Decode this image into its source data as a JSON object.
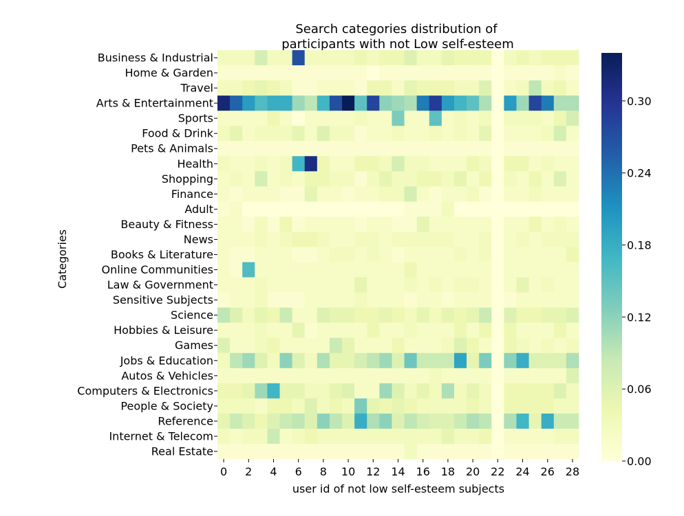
{
  "chart_data": {
    "type": "heatmap",
    "title_lines": [
      "Search categories distribution of",
      "participants with not Low self-esteem"
    ],
    "xlabel": "user id of not low self-esteem subjects",
    "ylabel": "Categories",
    "x": [
      0,
      1,
      2,
      3,
      4,
      5,
      6,
      7,
      8,
      9,
      10,
      11,
      12,
      13,
      14,
      15,
      16,
      17,
      18,
      19,
      20,
      21,
      22,
      23,
      24,
      25,
      26,
      27,
      28
    ],
    "x_tick_labels": [
      "0",
      "2",
      "4",
      "6",
      "8",
      "10",
      "12",
      "14",
      "16",
      "18",
      "20",
      "22",
      "24",
      "26",
      "28"
    ],
    "categories": [
      "Business & Industrial",
      "Home & Garden",
      "Travel",
      "Arts & Entertainment",
      "Sports",
      "Food & Drink",
      "Pets & Animals",
      "Health",
      "Shopping",
      "Finance",
      "Adult",
      "Beauty & Fitness",
      "News",
      "Books & Literature",
      "Online Communities",
      "Law & Government",
      "Sensitive Subjects",
      "Science",
      "Hobbies & Leisure",
      "Games",
      "Jobs & Education",
      "Autos & Vehicles",
      "Computers & Electronics",
      "People & Society",
      "Reference",
      "Internet & Telecom",
      "Real Estate"
    ],
    "colorbar": {
      "min": 0.0,
      "max": 0.34,
      "ticks": [
        0.0,
        0.06,
        0.12,
        0.18,
        0.24,
        0.3
      ],
      "tick_labels": [
        "0.00",
        "0.06",
        "0.12",
        "0.18",
        "0.24",
        "0.30"
      ],
      "colormap": "YlGnBu"
    },
    "values": [
      [
        0.03,
        0.03,
        0.03,
        0.07,
        0.03,
        0.03,
        0.27,
        0.03,
        0.03,
        0.03,
        0.03,
        0.04,
        0.03,
        0.04,
        0.04,
        0.06,
        0.03,
        0.03,
        0.05,
        0.04,
        0.04,
        0.04,
        0.0,
        0.03,
        0.04,
        0.03,
        0.04,
        0.04,
        0.04
      ],
      [
        0.01,
        0.01,
        0.01,
        0.01,
        0.01,
        0.01,
        0.01,
        0.01,
        0.01,
        0.01,
        0.01,
        0.01,
        0.0,
        0.01,
        0.01,
        0.01,
        0.01,
        0.01,
        0.01,
        0.01,
        0.01,
        0.01,
        0.0,
        0.01,
        0.01,
        0.01,
        0.01,
        0.02,
        0.01
      ],
      [
        0.03,
        0.03,
        0.04,
        0.05,
        0.04,
        0.03,
        0.01,
        0.01,
        0.02,
        0.02,
        0.02,
        0.01,
        0.04,
        0.04,
        0.02,
        0.05,
        0.04,
        0.04,
        0.04,
        0.03,
        0.03,
        0.06,
        0.0,
        0.02,
        0.03,
        0.09,
        0.03,
        0.04,
        0.02
      ],
      [
        0.32,
        0.25,
        0.2,
        0.16,
        0.18,
        0.18,
        0.11,
        0.09,
        0.17,
        0.27,
        0.34,
        0.15,
        0.28,
        0.12,
        0.11,
        0.1,
        0.23,
        0.29,
        0.2,
        0.17,
        0.15,
        0.1,
        0.0,
        0.2,
        0.11,
        0.28,
        0.23,
        0.1,
        0.1
      ],
      [
        0.02,
        0.02,
        0.02,
        0.02,
        0.04,
        0.02,
        0.0,
        0.02,
        0.02,
        0.02,
        0.02,
        0.03,
        0.02,
        0.02,
        0.13,
        0.02,
        0.02,
        0.15,
        0.02,
        0.03,
        0.02,
        0.03,
        0.0,
        0.03,
        0.03,
        0.03,
        0.02,
        0.04,
        0.07
      ],
      [
        0.03,
        0.05,
        0.02,
        0.03,
        0.03,
        0.03,
        0.05,
        0.02,
        0.06,
        0.03,
        0.03,
        0.01,
        0.02,
        0.02,
        0.03,
        0.02,
        0.02,
        0.03,
        0.02,
        0.03,
        0.02,
        0.05,
        0.0,
        0.02,
        0.02,
        0.02,
        0.03,
        0.07,
        0.02
      ],
      [
        0.01,
        0.01,
        0.01,
        0.01,
        0.01,
        0.01,
        0.01,
        0.01,
        0.01,
        0.01,
        0.01,
        0.01,
        0.01,
        0.01,
        0.01,
        0.01,
        0.01,
        0.01,
        0.01,
        0.01,
        0.01,
        0.01,
        0.0,
        0.01,
        0.01,
        0.01,
        0.01,
        0.01,
        0.01
      ],
      [
        0.03,
        0.02,
        0.02,
        0.03,
        0.02,
        0.03,
        0.17,
        0.31,
        0.04,
        0.02,
        0.02,
        0.04,
        0.04,
        0.03,
        0.07,
        0.03,
        0.03,
        0.02,
        0.02,
        0.02,
        0.04,
        0.03,
        0.0,
        0.04,
        0.04,
        0.02,
        0.03,
        0.02,
        0.02
      ],
      [
        0.02,
        0.03,
        0.02,
        0.07,
        0.02,
        0.03,
        0.02,
        0.04,
        0.04,
        0.03,
        0.03,
        0.01,
        0.03,
        0.05,
        0.03,
        0.03,
        0.04,
        0.04,
        0.03,
        0.05,
        0.02,
        0.04,
        0.0,
        0.03,
        0.02,
        0.04,
        0.02,
        0.06,
        0.02
      ],
      [
        0.02,
        0.01,
        0.02,
        0.02,
        0.02,
        0.01,
        0.01,
        0.05,
        0.02,
        0.02,
        0.01,
        0.02,
        0.02,
        0.03,
        0.03,
        0.07,
        0.02,
        0.01,
        0.02,
        0.02,
        0.03,
        0.01,
        0.0,
        0.02,
        0.02,
        0.03,
        0.02,
        0.02,
        0.02
      ],
      [
        0.01,
        0.02,
        0.0,
        0.0,
        0.0,
        0.0,
        0.0,
        0.0,
        0.0,
        0.0,
        0.0,
        0.0,
        0.0,
        0.0,
        0.0,
        0.01,
        0.01,
        0.01,
        0.03,
        0.0,
        0.0,
        0.0,
        0.0,
        0.0,
        0.0,
        0.0,
        0.0,
        0.0,
        0.0
      ],
      [
        0.02,
        0.02,
        0.01,
        0.03,
        0.01,
        0.04,
        0.01,
        0.02,
        0.02,
        0.02,
        0.02,
        0.01,
        0.02,
        0.02,
        0.01,
        0.01,
        0.05,
        0.02,
        0.02,
        0.02,
        0.02,
        0.02,
        0.0,
        0.02,
        0.02,
        0.04,
        0.02,
        0.03,
        0.02
      ],
      [
        0.02,
        0.02,
        0.02,
        0.03,
        0.02,
        0.03,
        0.04,
        0.04,
        0.03,
        0.02,
        0.02,
        0.03,
        0.03,
        0.02,
        0.03,
        0.03,
        0.03,
        0.03,
        0.03,
        0.02,
        0.02,
        0.03,
        0.0,
        0.02,
        0.03,
        0.02,
        0.03,
        0.03,
        0.03
      ],
      [
        0.02,
        0.01,
        0.01,
        0.02,
        0.02,
        0.02,
        0.01,
        0.01,
        0.02,
        0.03,
        0.03,
        0.02,
        0.03,
        0.02,
        0.01,
        0.02,
        0.02,
        0.02,
        0.02,
        0.03,
        0.02,
        0.03,
        0.0,
        0.02,
        0.02,
        0.02,
        0.02,
        0.02,
        0.04
      ],
      [
        0.02,
        0.01,
        0.16,
        0.02,
        0.02,
        0.02,
        0.02,
        0.02,
        0.02,
        0.02,
        0.02,
        0.02,
        0.02,
        0.02,
        0.02,
        0.04,
        0.02,
        0.02,
        0.02,
        0.02,
        0.02,
        0.02,
        0.0,
        0.02,
        0.02,
        0.02,
        0.02,
        0.02,
        0.02
      ],
      [
        0.02,
        0.02,
        0.02,
        0.03,
        0.02,
        0.02,
        0.02,
        0.02,
        0.02,
        0.02,
        0.02,
        0.05,
        0.02,
        0.02,
        0.02,
        0.03,
        0.02,
        0.03,
        0.02,
        0.03,
        0.03,
        0.02,
        0.0,
        0.02,
        0.05,
        0.02,
        0.03,
        0.02,
        0.02
      ],
      [
        0.01,
        0.02,
        0.02,
        0.03,
        0.01,
        0.01,
        0.01,
        0.02,
        0.02,
        0.02,
        0.02,
        0.03,
        0.02,
        0.02,
        0.02,
        0.01,
        0.02,
        0.02,
        0.01,
        0.02,
        0.02,
        0.02,
        0.0,
        0.01,
        0.02,
        0.02,
        0.02,
        0.02,
        0.02
      ],
      [
        0.09,
        0.06,
        0.03,
        0.05,
        0.04,
        0.08,
        0.02,
        0.02,
        0.06,
        0.05,
        0.05,
        0.04,
        0.04,
        0.05,
        0.04,
        0.03,
        0.05,
        0.03,
        0.05,
        0.04,
        0.05,
        0.08,
        0.0,
        0.06,
        0.04,
        0.04,
        0.05,
        0.05,
        0.06
      ],
      [
        0.02,
        0.02,
        0.02,
        0.03,
        0.02,
        0.02,
        0.05,
        0.01,
        0.02,
        0.02,
        0.02,
        0.02,
        0.04,
        0.02,
        0.02,
        0.03,
        0.02,
        0.02,
        0.02,
        0.04,
        0.02,
        0.04,
        0.0,
        0.04,
        0.02,
        0.02,
        0.02,
        0.04,
        0.02
      ],
      [
        0.06,
        0.02,
        0.02,
        0.03,
        0.04,
        0.02,
        0.02,
        0.02,
        0.02,
        0.08,
        0.05,
        0.02,
        0.02,
        0.02,
        0.04,
        0.02,
        0.02,
        0.02,
        0.03,
        0.06,
        0.04,
        0.02,
        0.0,
        0.04,
        0.03,
        0.02,
        0.03,
        0.02,
        0.03
      ],
      [
        0.03,
        0.09,
        0.11,
        0.06,
        0.03,
        0.12,
        0.06,
        0.03,
        0.1,
        0.05,
        0.05,
        0.07,
        0.09,
        0.11,
        0.06,
        0.14,
        0.08,
        0.08,
        0.08,
        0.19,
        0.05,
        0.13,
        0.0,
        0.12,
        0.18,
        0.06,
        0.06,
        0.06,
        0.1
      ],
      [
        0.02,
        0.02,
        0.02,
        0.02,
        0.02,
        0.02,
        0.02,
        0.02,
        0.02,
        0.02,
        0.02,
        0.02,
        0.02,
        0.02,
        0.02,
        0.02,
        0.02,
        0.03,
        0.02,
        0.02,
        0.02,
        0.02,
        0.0,
        0.02,
        0.02,
        0.02,
        0.02,
        0.02,
        0.06
      ],
      [
        0.04,
        0.04,
        0.05,
        0.11,
        0.17,
        0.05,
        0.05,
        0.03,
        0.03,
        0.05,
        0.06,
        0.02,
        0.02,
        0.11,
        0.06,
        0.03,
        0.05,
        0.03,
        0.1,
        0.03,
        0.05,
        0.03,
        0.0,
        0.04,
        0.04,
        0.04,
        0.04,
        0.06,
        0.03
      ],
      [
        0.03,
        0.03,
        0.03,
        0.02,
        0.04,
        0.04,
        0.03,
        0.06,
        0.03,
        0.04,
        0.03,
        0.13,
        0.05,
        0.04,
        0.05,
        0.04,
        0.03,
        0.03,
        0.03,
        0.03,
        0.04,
        0.03,
        0.0,
        0.04,
        0.04,
        0.04,
        0.04,
        0.03,
        0.03
      ],
      [
        0.05,
        0.08,
        0.06,
        0.04,
        0.06,
        0.08,
        0.09,
        0.06,
        0.12,
        0.09,
        0.06,
        0.18,
        0.1,
        0.12,
        0.06,
        0.09,
        0.07,
        0.06,
        0.06,
        0.08,
        0.1,
        0.09,
        0.0,
        0.1,
        0.17,
        0.05,
        0.18,
        0.08,
        0.08
      ],
      [
        0.03,
        0.02,
        0.03,
        0.03,
        0.08,
        0.02,
        0.03,
        0.04,
        0.03,
        0.03,
        0.03,
        0.03,
        0.03,
        0.03,
        0.03,
        0.03,
        0.03,
        0.03,
        0.05,
        0.03,
        0.03,
        0.04,
        0.0,
        0.02,
        0.02,
        0.02,
        0.02,
        0.03,
        0.03
      ],
      [
        0.01,
        0.01,
        0.01,
        0.01,
        0.01,
        0.01,
        0.01,
        0.01,
        0.01,
        0.01,
        0.01,
        0.01,
        0.01,
        0.01,
        0.01,
        0.03,
        0.01,
        0.01,
        0.01,
        0.01,
        0.01,
        0.01,
        0.0,
        0.01,
        0.01,
        0.01,
        0.01,
        0.01,
        0.01
      ]
    ]
  }
}
